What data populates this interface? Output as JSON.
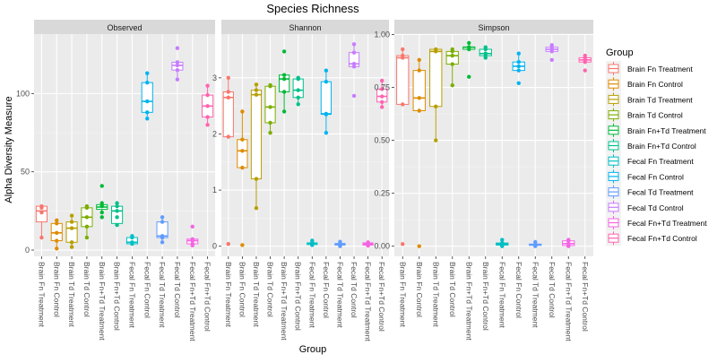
{
  "colors": {
    "panel_bg": "#EBEBEB",
    "grid_major": "#FFFFFF",
    "strip_bg": "#D9D9D9",
    "text_dark": "#000000",
    "tick_text": "#4D4D4D"
  },
  "chart_data": {
    "type": "box",
    "title": "Species Richness",
    "xlabel": "Group",
    "ylabel": "Alpha Diversity Measure",
    "legend": {
      "title": "Group",
      "placement": "right"
    },
    "categories": [
      "Brain Fn Treatment",
      "Brain Fn Control",
      "Brain Td Treatment",
      "Brain Td Control",
      "Brain Fn+Td Treatment",
      "Brain Fn+Td Control",
      "Fecal Fn Treatment",
      "Fecal Fn Control",
      "Fecal Td Treatment",
      "Fecal Td Control",
      "Fecal Fn+Td Treatment",
      "Fecal Fn+Td Control"
    ],
    "category_colors": [
      "#F8766D",
      "#DE8C00",
      "#B79F00",
      "#7CAE00",
      "#00BA38",
      "#00C08B",
      "#00BFC4",
      "#00B4F0",
      "#619CFF",
      "#C77CFF",
      "#F564E3",
      "#FF64B0"
    ],
    "panels": [
      {
        "name": "Observed",
        "ylim": [
          -4,
          138
        ],
        "yticks": [
          0,
          50,
          100
        ],
        "tick_labels": [
          "0",
          "50",
          "100"
        ],
        "boxes": [
          {
            "q1": 18,
            "median": 25,
            "q3": 28,
            "whisker_low": 8,
            "whisker_high": 28,
            "points": [
              8,
              24,
              27,
              28
            ]
          },
          {
            "q1": 6,
            "median": 11,
            "q3": 17,
            "whisker_low": 1,
            "whisker_high": 19,
            "points": [
              1,
              6,
              11,
              17,
              19
            ]
          },
          {
            "q1": 5,
            "median": 14,
            "q3": 18,
            "whisker_low": 2,
            "whisker_high": 22,
            "points": [
              2,
              5,
              14,
              18,
              22
            ]
          },
          {
            "q1": 15,
            "median": 21,
            "q3": 27,
            "whisker_low": 8,
            "whisker_high": 28,
            "points": [
              8,
              15,
              21,
              27,
              28
            ]
          },
          {
            "q1": 26,
            "median": 27.5,
            "q3": 29,
            "whisker_low": 24,
            "whisker_high": 30,
            "points": [
              21,
              24,
              28,
              30,
              41
            ]
          },
          {
            "q1": 17,
            "median": 25,
            "q3": 28,
            "whisker_low": 16,
            "whisker_high": 30,
            "points": [
              16,
              21,
              25,
              28,
              30
            ]
          },
          {
            "q1": 4,
            "median": 5,
            "q3": 8,
            "whisker_low": 4,
            "whisker_high": 9,
            "points": [
              4,
              5,
              8,
              9
            ]
          },
          {
            "q1": 88,
            "median": 95,
            "q3": 107,
            "whisker_low": 84,
            "whisker_high": 113,
            "points": [
              84,
              88,
              95,
              107,
              113
            ]
          },
          {
            "q1": 8,
            "median": 9,
            "q3": 18,
            "whisker_low": 5,
            "whisker_high": 21,
            "points": [
              5,
              8,
              9,
              18,
              21
            ]
          },
          {
            "q1": 115,
            "median": 118,
            "q3": 120,
            "whisker_low": 109,
            "whisker_high": 120,
            "points": [
              109,
              115,
              118,
              120,
              129
            ]
          },
          {
            "q1": 4,
            "median": 6,
            "q3": 7,
            "whisker_low": 3,
            "whisker_high": 8,
            "points": [
              3,
              4,
              6,
              7,
              15
            ]
          },
          {
            "q1": 85,
            "median": 92,
            "q3": 99,
            "whisker_low": 80,
            "whisker_high": 105,
            "points": [
              80,
              85,
              92,
              99,
              105
            ]
          }
        ]
      },
      {
        "name": "Shannon",
        "ylim": [
          -0.18,
          3.78
        ],
        "yticks": [
          0,
          1,
          2,
          3
        ],
        "tick_labels": [
          "0",
          "1",
          "2",
          "3"
        ],
        "boxes": [
          {
            "q1": 1.95,
            "median": 2.65,
            "q3": 2.75,
            "whisker_low": 1.95,
            "whisker_high": 3.0,
            "points": [
              0.04,
              1.95,
              2.65,
              2.75,
              3.0
            ]
          },
          {
            "q1": 1.4,
            "median": 1.7,
            "q3": 1.9,
            "whisker_low": 1.38,
            "whisker_high": 2.4,
            "points": [
              0.02,
              1.4,
              1.7,
              1.9,
              2.4
            ]
          },
          {
            "q1": 1.2,
            "median": 2.7,
            "q3": 2.78,
            "whisker_low": 0.68,
            "whisker_high": 2.88,
            "points": [
              0.68,
              1.2,
              2.7,
              2.78,
              2.88
            ]
          },
          {
            "q1": 2.2,
            "median": 2.48,
            "q3": 2.85,
            "whisker_low": 2.02,
            "whisker_high": 2.87,
            "points": [
              2.02,
              2.2,
              2.48,
              2.85,
              2.87
            ]
          },
          {
            "q1": 2.75,
            "median": 2.98,
            "q3": 3.05,
            "whisker_low": 2.4,
            "whisker_high": 3.05,
            "points": [
              2.4,
              2.75,
              2.98,
              3.05,
              3.47
            ]
          },
          {
            "q1": 2.65,
            "median": 2.78,
            "q3": 2.98,
            "whisker_low": 2.53,
            "whisker_high": 3.0,
            "points": [
              2.53,
              2.65,
              2.78,
              2.98,
              3.0
            ]
          },
          {
            "q1": 0.03,
            "median": 0.05,
            "q3": 0.06,
            "whisker_low": 0.02,
            "whisker_high": 0.1,
            "points": [
              0.02,
              0.03,
              0.05,
              0.06,
              0.1
            ]
          },
          {
            "q1": 2.35,
            "median": 2.36,
            "q3": 2.93,
            "whisker_low": 2.02,
            "whisker_high": 3.13,
            "points": [
              2.02,
              2.35,
              2.36,
              2.93,
              3.13
            ]
          },
          {
            "q1": 0.02,
            "median": 0.03,
            "q3": 0.05,
            "whisker_low": 0.0,
            "whisker_high": 0.08,
            "points": [
              0.0,
              0.02,
              0.03,
              0.05,
              0.08
            ]
          },
          {
            "q1": 3.2,
            "median": 3.25,
            "q3": 3.45,
            "whisker_low": 3.2,
            "whisker_high": 3.6,
            "points": [
              2.68,
              3.2,
              3.25,
              3.45,
              3.6
            ]
          },
          {
            "q1": 0.02,
            "median": 0.04,
            "q3": 0.06,
            "whisker_low": 0.01,
            "whisker_high": 0.07,
            "points": [
              0.01,
              0.02,
              0.04,
              0.06,
              0.07
            ]
          },
          {
            "q1": 2.57,
            "median": 2.67,
            "q3": 2.8,
            "whisker_low": 2.48,
            "whisker_high": 2.95,
            "points": [
              2.48,
              2.57,
              2.67,
              2.8,
              2.95
            ]
          }
        ]
      },
      {
        "name": "Simpson",
        "ylim": [
          -0.048,
          1.002
        ],
        "yticks": [
          0,
          0.25,
          0.5,
          0.75,
          1.0
        ],
        "tick_labels": [
          "0.00",
          "0.25",
          "0.50",
          "0.75",
          "1.00"
        ],
        "boxes": [
          {
            "q1": 0.67,
            "median": 0.89,
            "q3": 0.9,
            "whisker_low": 0.67,
            "whisker_high": 0.93,
            "points": [
              0.01,
              0.67,
              0.89,
              0.9,
              0.93
            ]
          },
          {
            "q1": 0.64,
            "median": 0.7,
            "q3": 0.83,
            "whisker_low": 0.63,
            "whisker_high": 0.88,
            "points": [
              0.0,
              0.64,
              0.7,
              0.83,
              0.88
            ]
          },
          {
            "q1": 0.66,
            "median": 0.92,
            "q3": 0.93,
            "whisker_low": 0.5,
            "whisker_high": 0.93,
            "points": [
              0.5,
              0.66,
              0.92,
              0.93
            ]
          },
          {
            "q1": 0.86,
            "median": 0.9,
            "q3": 0.92,
            "whisker_low": 0.76,
            "whisker_high": 0.93,
            "points": [
              0.76,
              0.86,
              0.9,
              0.92,
              0.93
            ]
          },
          {
            "q1": 0.93,
            "median": 0.94,
            "q3": 0.94,
            "whisker_low": 0.93,
            "whisker_high": 0.96,
            "points": [
              0.8,
              0.93,
              0.94,
              0.96
            ]
          },
          {
            "q1": 0.9,
            "median": 0.91,
            "q3": 0.93,
            "whisker_low": 0.89,
            "whisker_high": 0.94,
            "points": [
              0.89,
              0.9,
              0.91,
              0.93,
              0.94
            ]
          },
          {
            "q1": 0.005,
            "median": 0.01,
            "q3": 0.015,
            "whisker_low": 0.0,
            "whisker_high": 0.03,
            "points": [
              0.0,
              0.005,
              0.01,
              0.015,
              0.03
            ]
          },
          {
            "q1": 0.83,
            "median": 0.85,
            "q3": 0.87,
            "whisker_low": 0.83,
            "whisker_high": 0.91,
            "points": [
              0.77,
              0.83,
              0.85,
              0.87,
              0.91
            ]
          },
          {
            "q1": 0.004,
            "median": 0.006,
            "q3": 0.01,
            "whisker_low": 0.0,
            "whisker_high": 0.02,
            "points": [
              0.0,
              0.004,
              0.006,
              0.01,
              0.02
            ]
          },
          {
            "q1": 0.92,
            "median": 0.93,
            "q3": 0.94,
            "whisker_low": 0.92,
            "whisker_high": 0.95,
            "points": [
              0.88,
              0.92,
              0.93,
              0.94,
              0.95
            ]
          },
          {
            "q1": 0.003,
            "median": 0.012,
            "q3": 0.025,
            "whisker_low": 0.0,
            "whisker_high": 0.03,
            "points": [
              0.0,
              0.003,
              0.012,
              0.025,
              0.03
            ]
          },
          {
            "q1": 0.87,
            "median": 0.88,
            "q3": 0.89,
            "whisker_low": 0.87,
            "whisker_high": 0.9,
            "points": [
              0.83,
              0.87,
              0.88,
              0.89,
              0.9
            ]
          }
        ]
      }
    ]
  }
}
